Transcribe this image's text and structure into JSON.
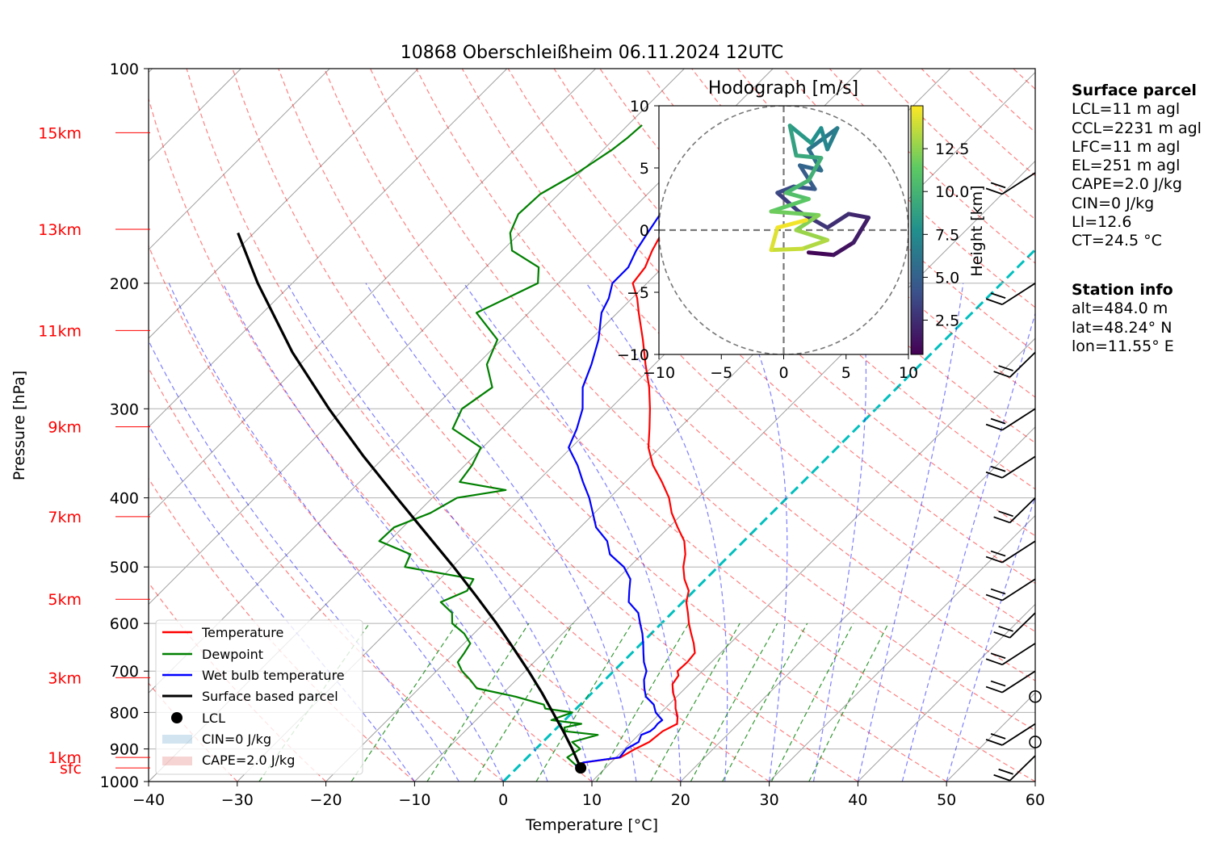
{
  "title": "10868 Oberschleißheim 06.11.2024 12UTC",
  "chart_data": {
    "type": "line",
    "subtype": "skew-T log-P diagram",
    "xlabel": "Temperature [°C]",
    "ylabel": "Pressure [hPa]",
    "xlim": [
      -40,
      60
    ],
    "ylim": [
      1000,
      100
    ],
    "y_scale": "log",
    "x_ticks": [
      -40,
      -30,
      -20,
      -10,
      0,
      10,
      20,
      30,
      40,
      50,
      60
    ],
    "x_tick_labels": [
      "−40",
      "−30",
      "−20",
      "−10",
      "0",
      "10",
      "20",
      "30",
      "40",
      "50",
      "60"
    ],
    "y_ticks": [
      1000,
      900,
      800,
      700,
      600,
      500,
      400,
      300,
      200,
      100
    ],
    "y_tick_labels": [
      "1000",
      "900",
      "800",
      "700",
      "600",
      "500",
      "400",
      "300",
      "200",
      "100"
    ],
    "grid": true,
    "height_labels": [
      {
        "label": "sfc",
        "p": 957
      },
      {
        "label": "1km",
        "p": 925
      },
      {
        "label": "3km",
        "p": 715
      },
      {
        "label": "5km",
        "p": 555
      },
      {
        "label": "7km",
        "p": 425
      },
      {
        "label": "9km",
        "p": 318
      },
      {
        "label": "11km",
        "p": 233
      },
      {
        "label": "13km",
        "p": 168
      },
      {
        "label": "15km",
        "p": 123
      }
    ],
    "height_label_color": "#ff0000",
    "series": [
      {
        "name": "Temperature",
        "color": "#ff0000",
        "p": [
          957,
          940,
          925,
          900,
          880,
          860,
          850,
          830,
          810,
          790,
          770,
          750,
          730,
          710,
          700,
          680,
          660,
          640,
          620,
          600,
          580,
          560,
          540,
          520,
          500,
          480,
          460,
          440,
          420,
          400,
          380,
          360,
          340,
          320,
          300,
          280,
          260,
          240,
          220,
          210,
          200,
          190,
          180,
          170,
          160,
          150,
          140,
          130,
          125,
          120
        ],
        "t": [
          7.2,
          7.0,
          10.5,
          11.2,
          12.0,
          12.2,
          12.3,
          13.1,
          12.3,
          11.2,
          10.3,
          9.1,
          8.1,
          7.8,
          7.2,
          7.3,
          7.1,
          5.9,
          4.5,
          3.1,
          1.8,
          0.4,
          -0.6,
          -2.4,
          -3.9,
          -5.1,
          -6.7,
          -9.0,
          -11.3,
          -13.3,
          -15.9,
          -18.8,
          -21.3,
          -23.3,
          -25.5,
          -28.0,
          -31.0,
          -34.1,
          -37.6,
          -39.4,
          -41.6,
          -42.0,
          -43.1,
          -44.0,
          -45.0,
          -45.8,
          -46.2,
          -46.2,
          -45.9,
          -45.6
        ]
      },
      {
        "name": "Dewpoint",
        "color": "#008000",
        "p": [
          957,
          925,
          900,
          880,
          860,
          850,
          840,
          830,
          820,
          810,
          800,
          790,
          780,
          760,
          740,
          720,
          700,
          680,
          660,
          640,
          620,
          600,
          580,
          560,
          540,
          520,
          500,
          480,
          460,
          440,
          420,
          400,
          390,
          380,
          360,
          340,
          320,
          300,
          280,
          260,
          240,
          220,
          200,
          190,
          180,
          170,
          160,
          150,
          140,
          130,
          125,
          120
        ],
        "t": [
          7.0,
          4.5,
          5.0,
          3.3,
          5.4,
          1.3,
          0.8,
          2.3,
          -1.5,
          -0.8,
          0.0,
          -3.5,
          -4.1,
          -8.2,
          -13.5,
          -15.2,
          -17.1,
          -18.6,
          -18.9,
          -19.3,
          -21.1,
          -23.6,
          -24.8,
          -27.3,
          -25.6,
          -26.2,
          -35.3,
          -36.1,
          -41.1,
          -41.0,
          -38.5,
          -37.2,
          -32.6,
          -38.7,
          -39.2,
          -40.2,
          -45.5,
          -46.7,
          -45.7,
          -48.9,
          -50.5,
          -55.9,
          -52.3,
          -54.0,
          -58.9,
          -61.1,
          -62.3,
          -62.1,
          -60.3,
          -59.0,
          -58.6,
          -58.4
        ]
      },
      {
        "name": "Wet bulb temperature",
        "color": "#0000ff",
        "p": [
          957,
          950,
          940,
          925,
          900,
          880,
          860,
          850,
          840,
          830,
          820,
          800,
          780,
          760,
          740,
          720,
          700,
          680,
          660,
          640,
          620,
          600,
          580,
          560,
          540,
          520,
          500,
          480,
          460,
          440,
          420,
          400,
          380,
          360,
          340,
          320,
          300,
          280,
          260,
          240,
          220,
          210,
          200,
          190,
          180,
          170,
          160,
          150,
          140,
          130,
          125,
          120
        ],
        "t": [
          7.2,
          6.4,
          6.9,
          10.4,
          10.2,
          10.8,
          10.3,
          10.9,
          11.0,
          10.9,
          11.0,
          9.4,
          8.3,
          6.5,
          5.4,
          4.4,
          3.7,
          2.4,
          1.3,
          0.2,
          -1.0,
          -2.4,
          -3.8,
          -6.1,
          -7.3,
          -8.5,
          -10.6,
          -13.6,
          -15.4,
          -18.2,
          -20.2,
          -22.3,
          -24.8,
          -27.3,
          -30.3,
          -31.5,
          -33.1,
          -35.5,
          -37.1,
          -39.1,
          -41.8,
          -42.6,
          -43.9,
          -43.9,
          -44.9,
          -45.6,
          -46.3,
          -46.5,
          -46.7,
          -46.5,
          -46.0,
          -45.6
        ]
      },
      {
        "name": "Surface based parcel",
        "color": "#000000",
        "p": [
          957,
          900,
          850,
          800,
          750,
          700,
          650,
          600,
          550,
          500,
          450,
          400,
          350,
          300,
          250,
          200,
          170
        ],
        "t": [
          7.2,
          4.1,
          1.1,
          -2.2,
          -5.7,
          -9.6,
          -13.9,
          -18.6,
          -23.9,
          -29.8,
          -36.5,
          -44.0,
          -52.4,
          -61.7,
          -72.2,
          -83.9,
          -91.8
        ]
      }
    ],
    "lcl": {
      "name": "LCL",
      "p": 957,
      "t": 7.2
    },
    "cin_label": "CIN=0 J/kg",
    "cape_label": "CAPE=2.0 J/kg",
    "legend_position": "lower-left",
    "hodograph": {
      "title": "Hodograph [m/s]",
      "xlim": [
        -10,
        10
      ],
      "ylim": [
        -10,
        10
      ],
      "x_ticks": [
        -10,
        -5,
        0,
        5,
        10
      ],
      "x_tick_labels": [
        "−10",
        "−5",
        "0",
        "5",
        "10"
      ],
      "y_ticks": [
        -10,
        -5,
        0,
        5,
        10
      ],
      "y_tick_labels": [
        "−10",
        "−5",
        "0",
        "5",
        "10"
      ],
      "colorbar_label": "Height [km]",
      "colorbar_ticks": [
        2.5,
        5.0,
        7.5,
        10.0,
        12.5
      ],
      "colorbar_tick_labels": [
        "2.5",
        "5.0",
        "7.5",
        "10.0",
        "12.5"
      ],
      "colormap": [
        "#440154",
        "#3b528b",
        "#21908d",
        "#5dc963",
        "#fde725"
      ],
      "trace": [
        {
          "h": 0.5,
          "u": 2.0,
          "v": -1.8
        },
        {
          "h": 1.0,
          "u": 4.0,
          "v": -2.0
        },
        {
          "h": 1.5,
          "u": 5.6,
          "v": -1.0
        },
        {
          "h": 2.0,
          "u": 6.8,
          "v": 1.0
        },
        {
          "h": 2.3,
          "u": 5.2,
          "v": 1.3
        },
        {
          "h": 2.7,
          "u": 3.5,
          "v": 0.2
        },
        {
          "h": 3.0,
          "u": 1.2,
          "v": 1.5
        },
        {
          "h": 3.5,
          "u": -0.5,
          "v": 3.0
        },
        {
          "h": 4.0,
          "u": 0.8,
          "v": 3.5
        },
        {
          "h": 4.5,
          "u": 2.5,
          "v": 3.3
        },
        {
          "h": 5.0,
          "u": 1.3,
          "v": 5.2
        },
        {
          "h": 5.5,
          "u": 3.0,
          "v": 4.8
        },
        {
          "h": 6.0,
          "u": 2.0,
          "v": 6.5
        },
        {
          "h": 6.5,
          "u": 4.3,
          "v": 8.2
        },
        {
          "h": 7.0,
          "u": 3.5,
          "v": 6.5
        },
        {
          "h": 7.5,
          "u": 3.0,
          "v": 8.2
        },
        {
          "h": 8.0,
          "u": 2.2,
          "v": 7.0
        },
        {
          "h": 8.5,
          "u": 0.5,
          "v": 8.4
        },
        {
          "h": 9.0,
          "u": 1.0,
          "v": 6.0
        },
        {
          "h": 9.5,
          "u": 3.0,
          "v": 5.8
        },
        {
          "h": 10.0,
          "u": 2.0,
          "v": 4.0
        },
        {
          "h": 10.5,
          "u": 0.2,
          "v": 3.0
        },
        {
          "h": 11.0,
          "u": 2.0,
          "v": 2.5
        },
        {
          "h": 11.5,
          "u": -1.0,
          "v": 1.5
        },
        {
          "h": 12.0,
          "u": 2.8,
          "v": 1.2
        },
        {
          "h": 12.5,
          "u": 1.0,
          "v": 0.0
        },
        {
          "h": 13.0,
          "u": 3.5,
          "v": -0.8
        },
        {
          "h": 13.5,
          "u": 1.5,
          "v": -1.5
        },
        {
          "h": 14.0,
          "u": -1.0,
          "v": -1.6
        },
        {
          "h": 14.5,
          "u": -0.5,
          "v": 0.2
        },
        {
          "h": 15.0,
          "u": 1.8,
          "v": 0.8
        }
      ]
    }
  },
  "legend": {
    "temperature": "Temperature",
    "dewpoint": "Dewpoint",
    "wetbulb": "Wet bulb temperature",
    "parcel": "Surface based parcel",
    "lcl": "LCL",
    "cin": "CIN=0 J/kg",
    "cape": "CAPE=2.0 J/kg"
  },
  "surface_parcel": {
    "heading": "Surface parcel",
    "lines": [
      "LCL=11 m agl",
      "CCL=2231 m agl",
      "LFC=11 m agl",
      "EL=251 m agl",
      "CAPE=2.0 J/kg",
      "CIN=0 J/kg",
      "LI=12.6",
      "CT=24.5 °C"
    ]
  },
  "station_info": {
    "heading": "Station info",
    "lines": [
      "alt=484.0 m",
      "lat=48.24° N",
      "lon=11.55° E"
    ]
  },
  "colors": {
    "dry_adiabat": "#ff0000",
    "moist_adiabat": "#0000ff",
    "mixing_ratio": "#008000",
    "isotherm": "#808080",
    "freezing_isotherm": "#00bfbf"
  }
}
